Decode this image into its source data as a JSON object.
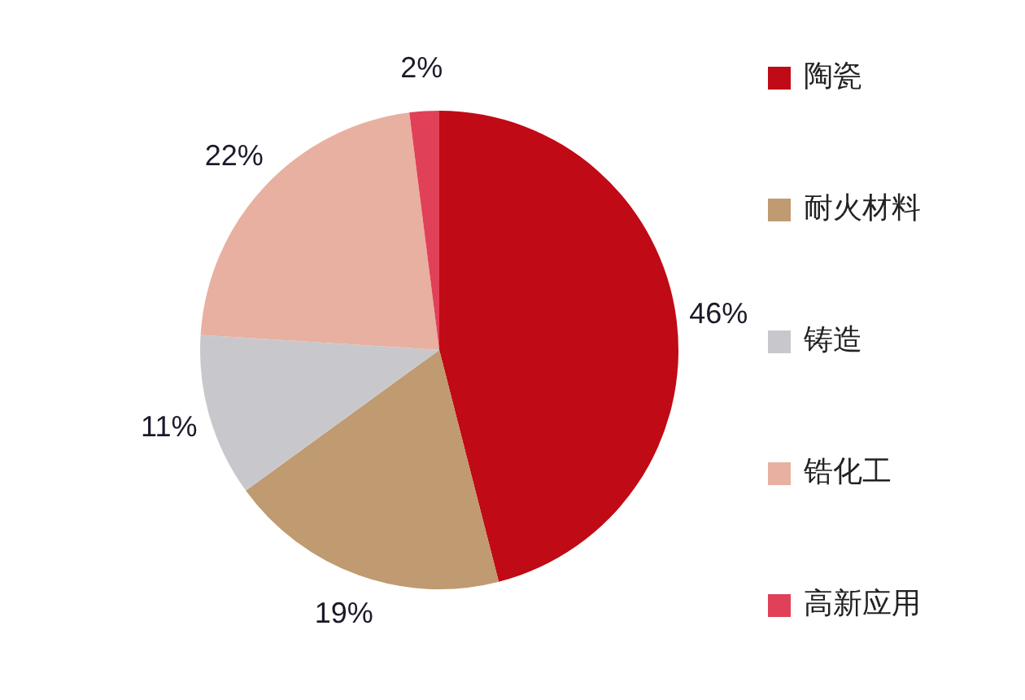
{
  "chart_data": {
    "type": "pie",
    "categories": [
      "陶瓷",
      "耐火材料",
      "铸造",
      "锆化工",
      "高新应用"
    ],
    "values": [
      46,
      19,
      11,
      22,
      2
    ],
    "colors": [
      "#c00a16",
      "#c09a70",
      "#c8c8cc",
      "#e8b0a0",
      "#e04058"
    ],
    "value_labels": [
      "46%",
      "19%",
      "11%",
      "22%",
      "2%"
    ],
    "legend": "right"
  }
}
